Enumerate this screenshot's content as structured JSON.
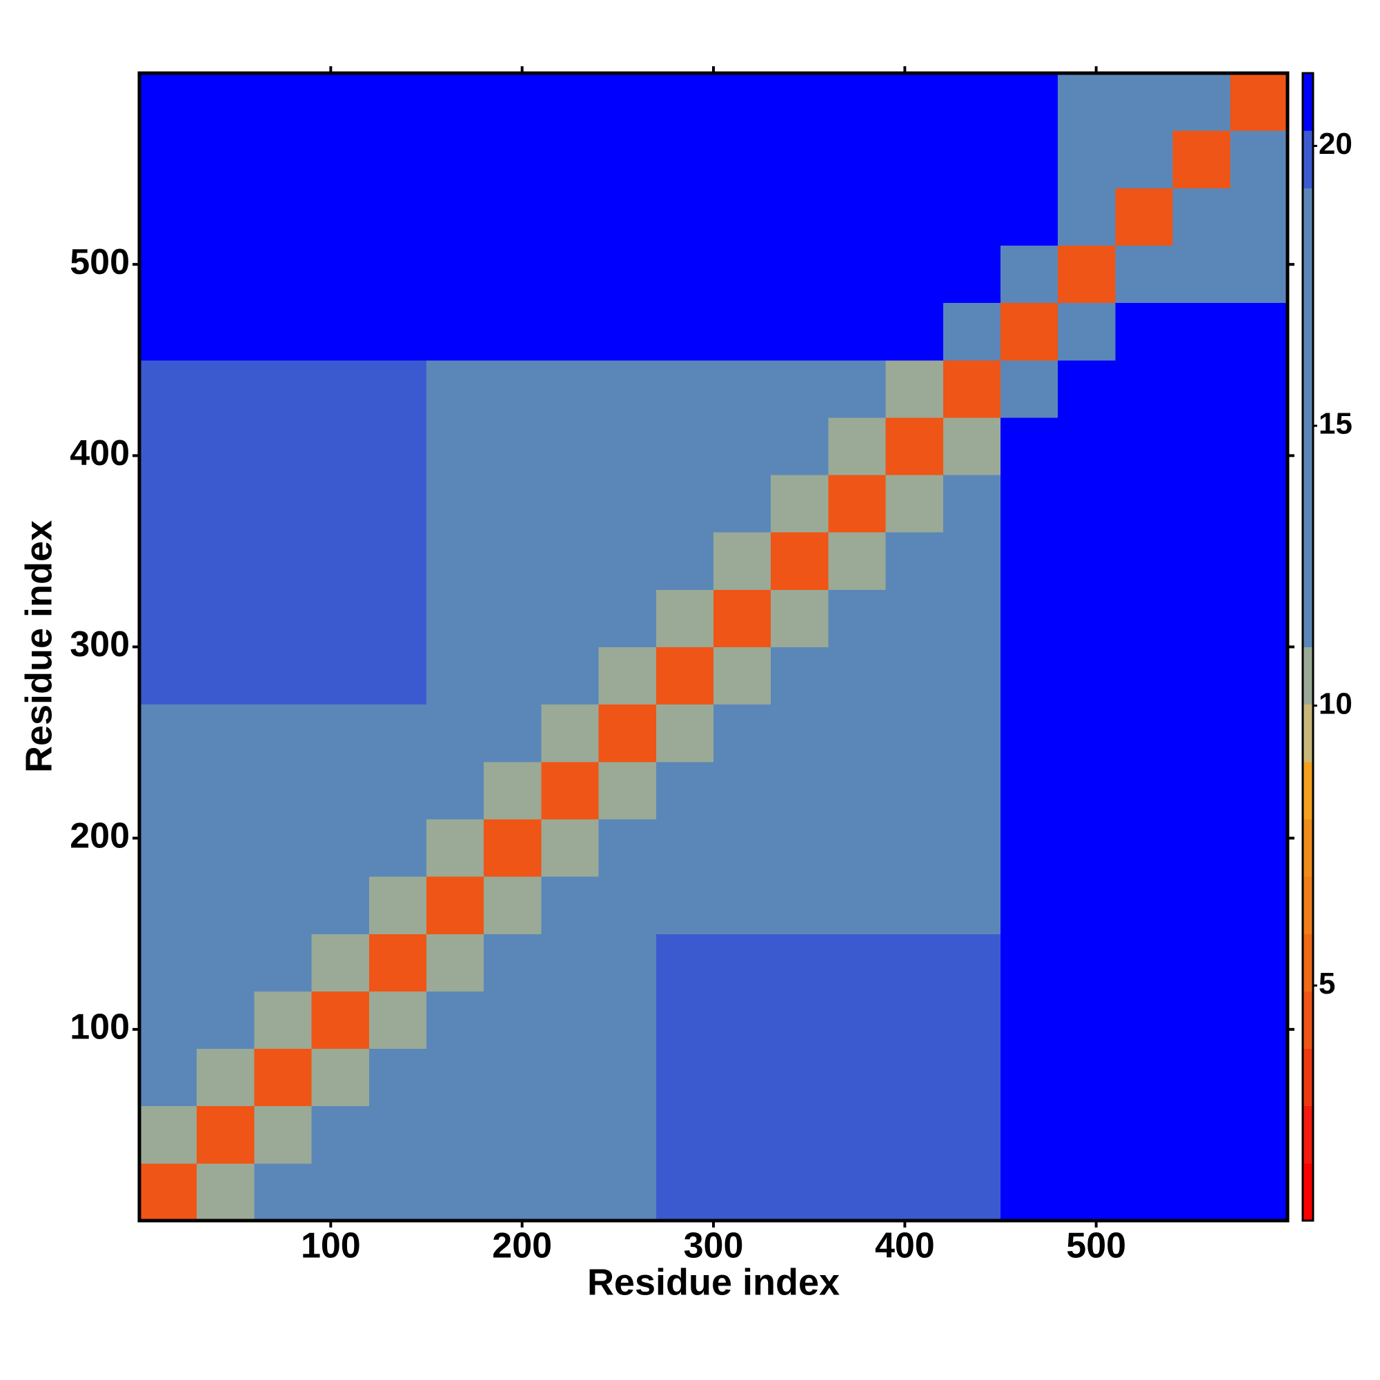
{
  "chart_data": {
    "type": "heatmap",
    "x_label": "Residue index",
    "y_label": "Residue index",
    "xbins": [
      0,
      30,
      60,
      90,
      120,
      150,
      180,
      210,
      240,
      270,
      300,
      330,
      360,
      390,
      420,
      450,
      480,
      510,
      540,
      570,
      600
    ],
    "ybins": [
      0,
      30,
      60,
      90,
      120,
      150,
      180,
      210,
      240,
      270,
      300,
      330,
      360,
      390,
      420,
      450,
      480,
      510,
      540,
      570,
      600
    ],
    "values": [
      [
        4,
        11,
        17,
        17,
        17,
        17,
        17,
        17,
        17,
        20.2,
        20.2,
        20.2,
        20.2,
        20.2,
        20.2,
        21,
        21,
        21,
        21,
        21
      ],
      [
        11,
        4,
        11,
        17,
        17,
        17,
        17,
        17,
        17,
        20.2,
        20.2,
        20.2,
        20.2,
        20.2,
        20.2,
        21,
        21,
        21,
        21,
        21
      ],
      [
        17,
        11,
        4,
        11,
        17,
        17,
        17,
        17,
        17,
        20.2,
        20.2,
        20.2,
        20.2,
        20.2,
        20.2,
        21,
        21,
        21,
        21,
        21
      ],
      [
        17,
        17,
        11,
        4,
        11,
        17,
        17,
        17,
        17,
        20.2,
        20.2,
        20.2,
        20.2,
        20.2,
        20.2,
        21,
        21,
        21,
        21,
        21
      ],
      [
        17,
        17,
        17,
        11,
        4,
        11,
        17,
        17,
        17,
        20.2,
        20.2,
        20.2,
        20.2,
        20.2,
        20.2,
        21,
        21,
        21,
        21,
        21
      ],
      [
        17,
        17,
        17,
        17,
        11,
        4,
        11,
        17,
        17,
        17,
        17,
        17,
        17,
        17,
        17,
        21,
        21,
        21,
        21,
        21
      ],
      [
        17,
        17,
        17,
        17,
        17,
        11,
        4,
        11,
        17,
        17,
        17,
        17,
        17,
        17,
        17,
        21,
        21,
        21,
        21,
        21
      ],
      [
        17,
        17,
        17,
        17,
        17,
        17,
        11,
        4,
        11,
        17,
        17,
        17,
        17,
        17,
        17,
        21,
        21,
        21,
        21,
        21
      ],
      [
        17,
        17,
        17,
        17,
        17,
        17,
        17,
        11,
        4,
        11,
        17,
        17,
        17,
        17,
        17,
        21,
        21,
        21,
        21,
        21
      ],
      [
        20.2,
        20.2,
        20.2,
        20.2,
        20.2,
        17,
        17,
        17,
        11,
        4,
        11,
        17,
        17,
        17,
        17,
        21,
        21,
        21,
        21,
        21
      ],
      [
        20.2,
        20.2,
        20.2,
        20.2,
        20.2,
        17,
        17,
        17,
        17,
        11,
        4,
        11,
        17,
        17,
        17,
        21,
        21,
        21,
        21,
        21
      ],
      [
        20.2,
        20.2,
        20.2,
        20.2,
        20.2,
        17,
        17,
        17,
        17,
        17,
        11,
        4,
        11,
        17,
        17,
        21,
        21,
        21,
        21,
        21
      ],
      [
        20.2,
        20.2,
        20.2,
        20.2,
        20.2,
        17,
        17,
        17,
        17,
        17,
        17,
        11,
        4,
        11,
        17,
        21,
        21,
        21,
        21,
        21
      ],
      [
        20.2,
        20.2,
        20.2,
        20.2,
        20.2,
        17,
        17,
        17,
        17,
        17,
        17,
        17,
        11,
        4,
        11,
        21,
        21,
        21,
        21,
        21
      ],
      [
        20.2,
        20.2,
        20.2,
        20.2,
        20.2,
        17,
        17,
        17,
        17,
        17,
        17,
        17,
        17,
        11,
        4,
        13,
        21,
        21,
        21,
        21
      ],
      [
        21,
        21,
        21,
        21,
        21,
        21,
        21,
        21,
        21,
        21,
        21,
        21,
        21,
        21,
        13,
        4,
        12,
        21,
        21,
        21
      ],
      [
        21,
        21,
        21,
        21,
        21,
        21,
        21,
        21,
        21,
        21,
        21,
        21,
        21,
        21,
        21,
        12,
        4,
        12,
        16,
        16
      ],
      [
        21,
        21,
        21,
        21,
        21,
        21,
        21,
        21,
        21,
        21,
        21,
        21,
        21,
        21,
        21,
        21,
        12,
        4,
        12,
        16
      ],
      [
        21,
        21,
        21,
        21,
        21,
        21,
        21,
        21,
        21,
        21,
        21,
        21,
        21,
        21,
        21,
        21,
        16,
        12,
        4,
        12
      ],
      [
        21,
        21,
        21,
        21,
        21,
        21,
        21,
        21,
        21,
        21,
        21,
        21,
        21,
        21,
        21,
        21,
        16,
        16,
        12,
        4
      ]
    ],
    "xlim": [
      0,
      600
    ],
    "ylim": [
      0,
      600
    ],
    "xticks": [
      100,
      200,
      300,
      400,
      500
    ],
    "yticks": [
      100,
      200,
      300,
      400,
      500
    ],
    "clim": [
      0.8,
      21.3
    ],
    "cticks": [
      5,
      10,
      15,
      20
    ],
    "colormap": [
      "#ff0000",
      "#f31a0e",
      "#ee3a12",
      "#ee5516",
      "#f06a18",
      "#f07e1a",
      "#f08c1c",
      "#f5a01e",
      "#c9b87a",
      "#9aaa96",
      "#5b87b8",
      "#5b87b8",
      "#5b87b8",
      "#5b87b8",
      "#5b87b8",
      "#5b87b8",
      "#5b87b8",
      "#5b87b8",
      "#3c5ad0",
      "#0000ff"
    ]
  }
}
